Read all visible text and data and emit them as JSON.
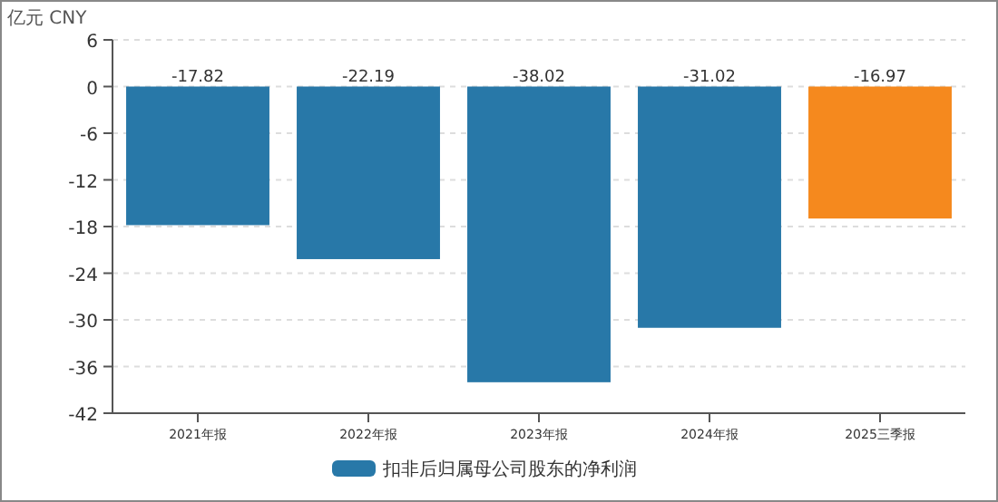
{
  "chart_data": {
    "type": "bar",
    "ylabel": "亿元  CNY",
    "categories": [
      "2021年报",
      "2022年报",
      "2023年报",
      "2024年报",
      "2025三季报"
    ],
    "series": [
      {
        "name": "扣非后归属母公司股东的净利润",
        "color": "#2878a8",
        "colors": [
          "#2878a8",
          "#2878a8",
          "#2878a8",
          "#2878a8",
          "#f5891e"
        ],
        "values": [
          -17.82,
          -22.19,
          -38.02,
          -31.02,
          -16.97
        ]
      }
    ],
    "ylim": [
      -42,
      6
    ],
    "yticks": [
      -42,
      -36,
      -30,
      -24,
      -18,
      -12,
      -6,
      0,
      6
    ],
    "grid": "y",
    "legend": "bottom",
    "data_labels": true
  }
}
